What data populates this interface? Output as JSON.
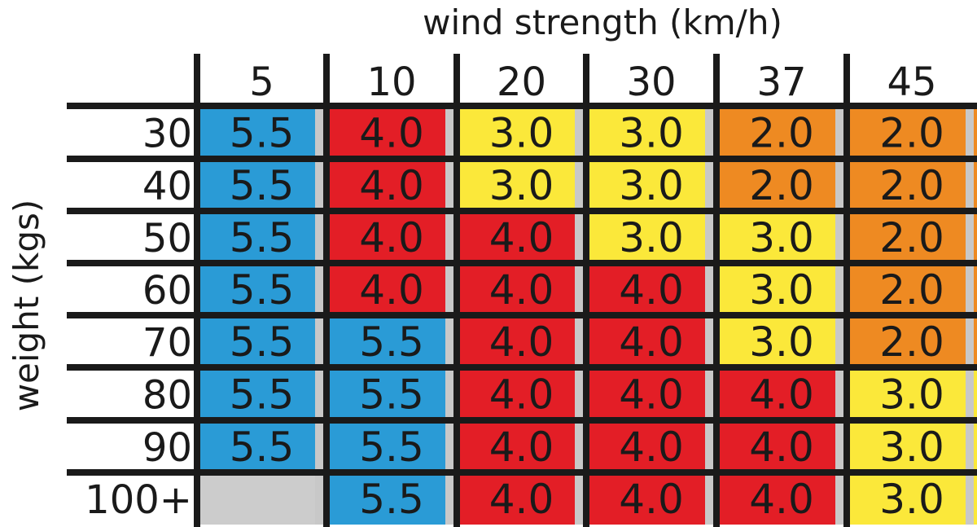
{
  "chart_data": {
    "type": "table",
    "title": "wind strength (km/h)",
    "ylabel": "weight (kgs)",
    "columns": [
      "5",
      "10",
      "20",
      "30",
      "37",
      "45"
    ],
    "rows": [
      "30",
      "40",
      "50",
      "60",
      "70",
      "80",
      "90",
      "100+"
    ],
    "values": [
      [
        "5.5",
        "4.0",
        "3.0",
        "3.0",
        "2.0",
        "2.0"
      ],
      [
        "5.5",
        "4.0",
        "3.0",
        "3.0",
        "2.0",
        "2.0"
      ],
      [
        "5.5",
        "4.0",
        "4.0",
        "3.0",
        "3.0",
        "2.0"
      ],
      [
        "5.5",
        "4.0",
        "4.0",
        "4.0",
        "3.0",
        "2.0"
      ],
      [
        "5.5",
        "5.5",
        "4.0",
        "4.0",
        "3.0",
        "2.0"
      ],
      [
        "5.5",
        "5.5",
        "4.0",
        "4.0",
        "4.0",
        "3.0"
      ],
      [
        "5.5",
        "5.5",
        "4.0",
        "4.0",
        "4.0",
        "3.0"
      ],
      [
        "",
        "5.5",
        "4.0",
        "4.0",
        "4.0",
        "3.0"
      ]
    ],
    "colors": {
      "5.5": "#2a9bd6",
      "4.0": "#e31e26",
      "3.0": "#fbe83a",
      "2.0": "#ee8a22",
      "empty": "#cccccc",
      "grid": "#1a1a1a"
    }
  }
}
